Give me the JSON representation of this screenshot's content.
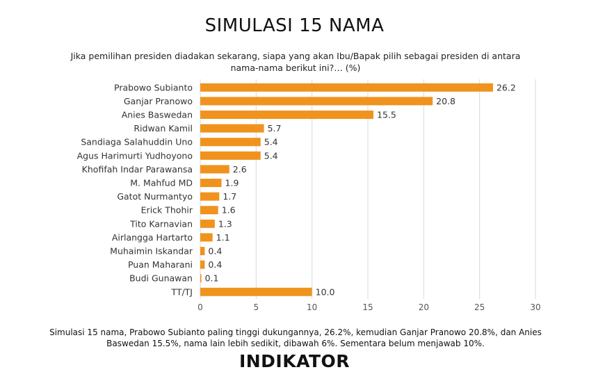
{
  "title": "SIMULASI 15 NAMA",
  "subtitle": "Jika pemilihan presiden diadakan sekarang, siapa yang akan Ibu/Bapak pilih sebagai presiden di antara nama-nama berikut ini?… (%)",
  "footer": "Simulasi 15 nama, Prabowo Subianto paling tinggi dukungannya, 26.2%, kemudian Ganjar Pranowo 20.8%, dan Anies Baswedan 15.5%, nama lain lebih sedikit, dibawah 6%. Sementara belum menjawab 10%.",
  "logo": "INDIKATOR",
  "colors": {
    "bar": "#F0931E",
    "grid": "#d9d9d9",
    "axis_text": "#555555"
  },
  "chart_data": {
    "type": "bar",
    "orientation": "horizontal",
    "categories": [
      "Prabowo Subianto",
      "Ganjar Pranowo",
      "Anies Baswedan",
      "Ridwan Kamil",
      "Sandiaga Salahuddin Uno",
      "Agus Harimurti Yudhoyono",
      "Khofifah Indar Parawansa",
      "M. Mahfud MD",
      "Gatot Nurmantyo",
      "Erick Thohir",
      "Tito Karnavian",
      "Airlangga Hartarto",
      "Muhaimin Iskandar",
      "Puan Maharani",
      "Budi Gunawan",
      "TT/TJ"
    ],
    "values": [
      26.2,
      20.8,
      15.5,
      5.7,
      5.4,
      5.4,
      2.6,
      1.9,
      1.7,
      1.6,
      1.3,
      1.1,
      0.4,
      0.4,
      0.1,
      10.0
    ],
    "value_labels": [
      "26.2",
      "20.8",
      "15.5",
      "5.7",
      "5.4",
      "5.4",
      "2.6",
      "1.9",
      "1.7",
      "1.6",
      "1.3",
      "1.1",
      "0.4",
      "0.4",
      "0.1",
      "10.0"
    ],
    "xlim": [
      0,
      30
    ],
    "xticks": [
      "0",
      "5",
      "10",
      "15",
      "20",
      "25",
      "30"
    ],
    "grid": true,
    "legend": "none"
  }
}
